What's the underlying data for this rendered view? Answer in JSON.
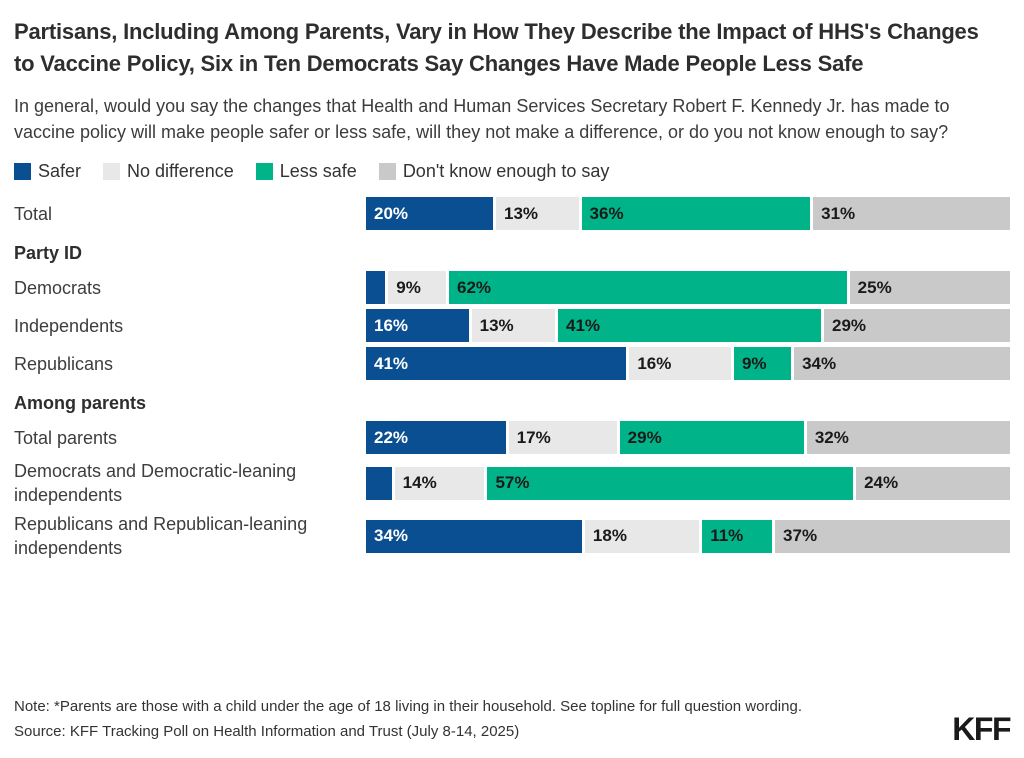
{
  "header": {
    "title": "Partisans, Including Among Parents, Vary in How They Describe the Impact of HHS's Changes to Vaccine Policy, Six in Ten Democrats Say Changes Have Made People Less Safe",
    "subtitle": "In general, would you say the changes that Health and Human Services Secretary Robert F. Kennedy Jr. has made to vaccine policy will make people safer or less safe, will they not make a difference, or do you not know enough to say?"
  },
  "legend": [
    {
      "label": "Safer",
      "color": "#0b4f93"
    },
    {
      "label": "No difference",
      "color": "#e8e8e8"
    },
    {
      "label": "Less safe",
      "color": "#00b388"
    },
    {
      "label": "Don't know enough to say",
      "color": "#c9c9c9"
    }
  ],
  "chart_data": {
    "type": "bar",
    "orientation": "horizontal",
    "stacked": true,
    "unit": "percent",
    "legend_position": "top",
    "series_names": [
      "Safer",
      "No difference",
      "Less safe",
      "Don't know enough to say"
    ],
    "series_colors": [
      "#0b4f93",
      "#e8e8e8",
      "#00b388",
      "#c9c9c9"
    ],
    "label_text_colors": [
      "#ffffff",
      "#1a1a1a",
      "#1a1a1a",
      "#1a1a1a"
    ],
    "rows": [
      {
        "kind": "bar",
        "label": "Total",
        "values": [
          20,
          13,
          36,
          31
        ],
        "display": [
          "20%",
          "13%",
          "36%",
          "31%"
        ]
      },
      {
        "kind": "section",
        "label": "Party ID"
      },
      {
        "kind": "bar",
        "label": "Democrats",
        "values": [
          3,
          9,
          62,
          25
        ],
        "display": [
          "",
          "9%",
          "62%",
          "25%"
        ]
      },
      {
        "kind": "bar",
        "label": "Independents",
        "values": [
          16,
          13,
          41,
          29
        ],
        "display": [
          "16%",
          "13%",
          "41%",
          "29%"
        ]
      },
      {
        "kind": "bar",
        "label": "Republicans",
        "values": [
          41,
          16,
          9,
          34
        ],
        "display": [
          "41%",
          "16%",
          "9%",
          "34%"
        ]
      },
      {
        "kind": "section",
        "label": "Among parents"
      },
      {
        "kind": "bar",
        "label": "Total parents",
        "values": [
          22,
          17,
          29,
          32
        ],
        "display": [
          "22%",
          "17%",
          "29%",
          "32%"
        ]
      },
      {
        "kind": "bar",
        "label": "Democrats and Democratic-leaning independents",
        "values": [
          4,
          14,
          57,
          24
        ],
        "display": [
          "",
          "14%",
          "57%",
          "24%"
        ]
      },
      {
        "kind": "bar",
        "label": "Republicans and Republican-leaning independents",
        "values": [
          34,
          18,
          11,
          37
        ],
        "display": [
          "34%",
          "18%",
          "11%",
          "37%"
        ]
      }
    ]
  },
  "footer": {
    "note": "Note: *Parents are those with a child under the age of 18 living in their household. See topline for full question wording.",
    "source": "Source: KFF Tracking Poll on Health Information and Trust (July 8-14, 2025)",
    "logo": "KFF"
  }
}
